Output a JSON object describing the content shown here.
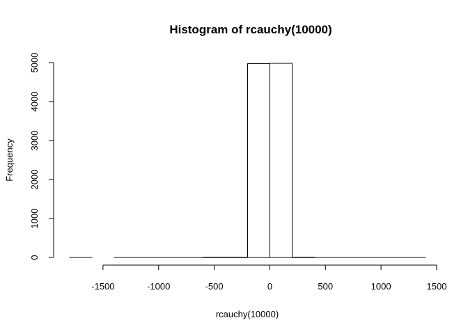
{
  "chart_data": {
    "type": "bar",
    "title": "Histogram of rcauchy(10000)",
    "xlabel": "rcauchy(10000)",
    "ylabel": "Frequency",
    "xlim": [
      -1800,
      1400
    ],
    "ylim": [
      0,
      5000
    ],
    "x_ticks": [
      -1500,
      -1000,
      -500,
      0,
      500,
      1000,
      1500
    ],
    "x_tick_labels": [
      "-1500",
      "-1000",
      "-500",
      "0",
      "500",
      "1000",
      "1500"
    ],
    "y_ticks": [
      0,
      1000,
      2000,
      3000,
      4000,
      5000
    ],
    "y_tick_labels": [
      "0",
      "1000",
      "2000",
      "3000",
      "4000",
      "5000"
    ],
    "bin_width": 200,
    "bins": [
      {
        "start": -1800,
        "end": -1600,
        "count": 1
      },
      {
        "start": -1600,
        "end": -1400,
        "count": 0
      },
      {
        "start": -1400,
        "end": -1200,
        "count": 1
      },
      {
        "start": -1200,
        "end": -1000,
        "count": 1
      },
      {
        "start": -1000,
        "end": -800,
        "count": 2
      },
      {
        "start": -800,
        "end": -600,
        "count": 3
      },
      {
        "start": -600,
        "end": -400,
        "count": 5
      },
      {
        "start": -400,
        "end": -200,
        "count": 10
      },
      {
        "start": -200,
        "end": 0,
        "count": 4975
      },
      {
        "start": 0,
        "end": 200,
        "count": 4985
      },
      {
        "start": 200,
        "end": 400,
        "count": 8
      },
      {
        "start": 400,
        "end": 600,
        "count": 3
      },
      {
        "start": 600,
        "end": 800,
        "count": 2
      },
      {
        "start": 800,
        "end": 1000,
        "count": 2
      },
      {
        "start": 1000,
        "end": 1200,
        "count": 1
      },
      {
        "start": 1200,
        "end": 1400,
        "count": 1
      }
    ],
    "grid": false,
    "bar_fill": "#ffffff",
    "bar_stroke": "#000000"
  }
}
